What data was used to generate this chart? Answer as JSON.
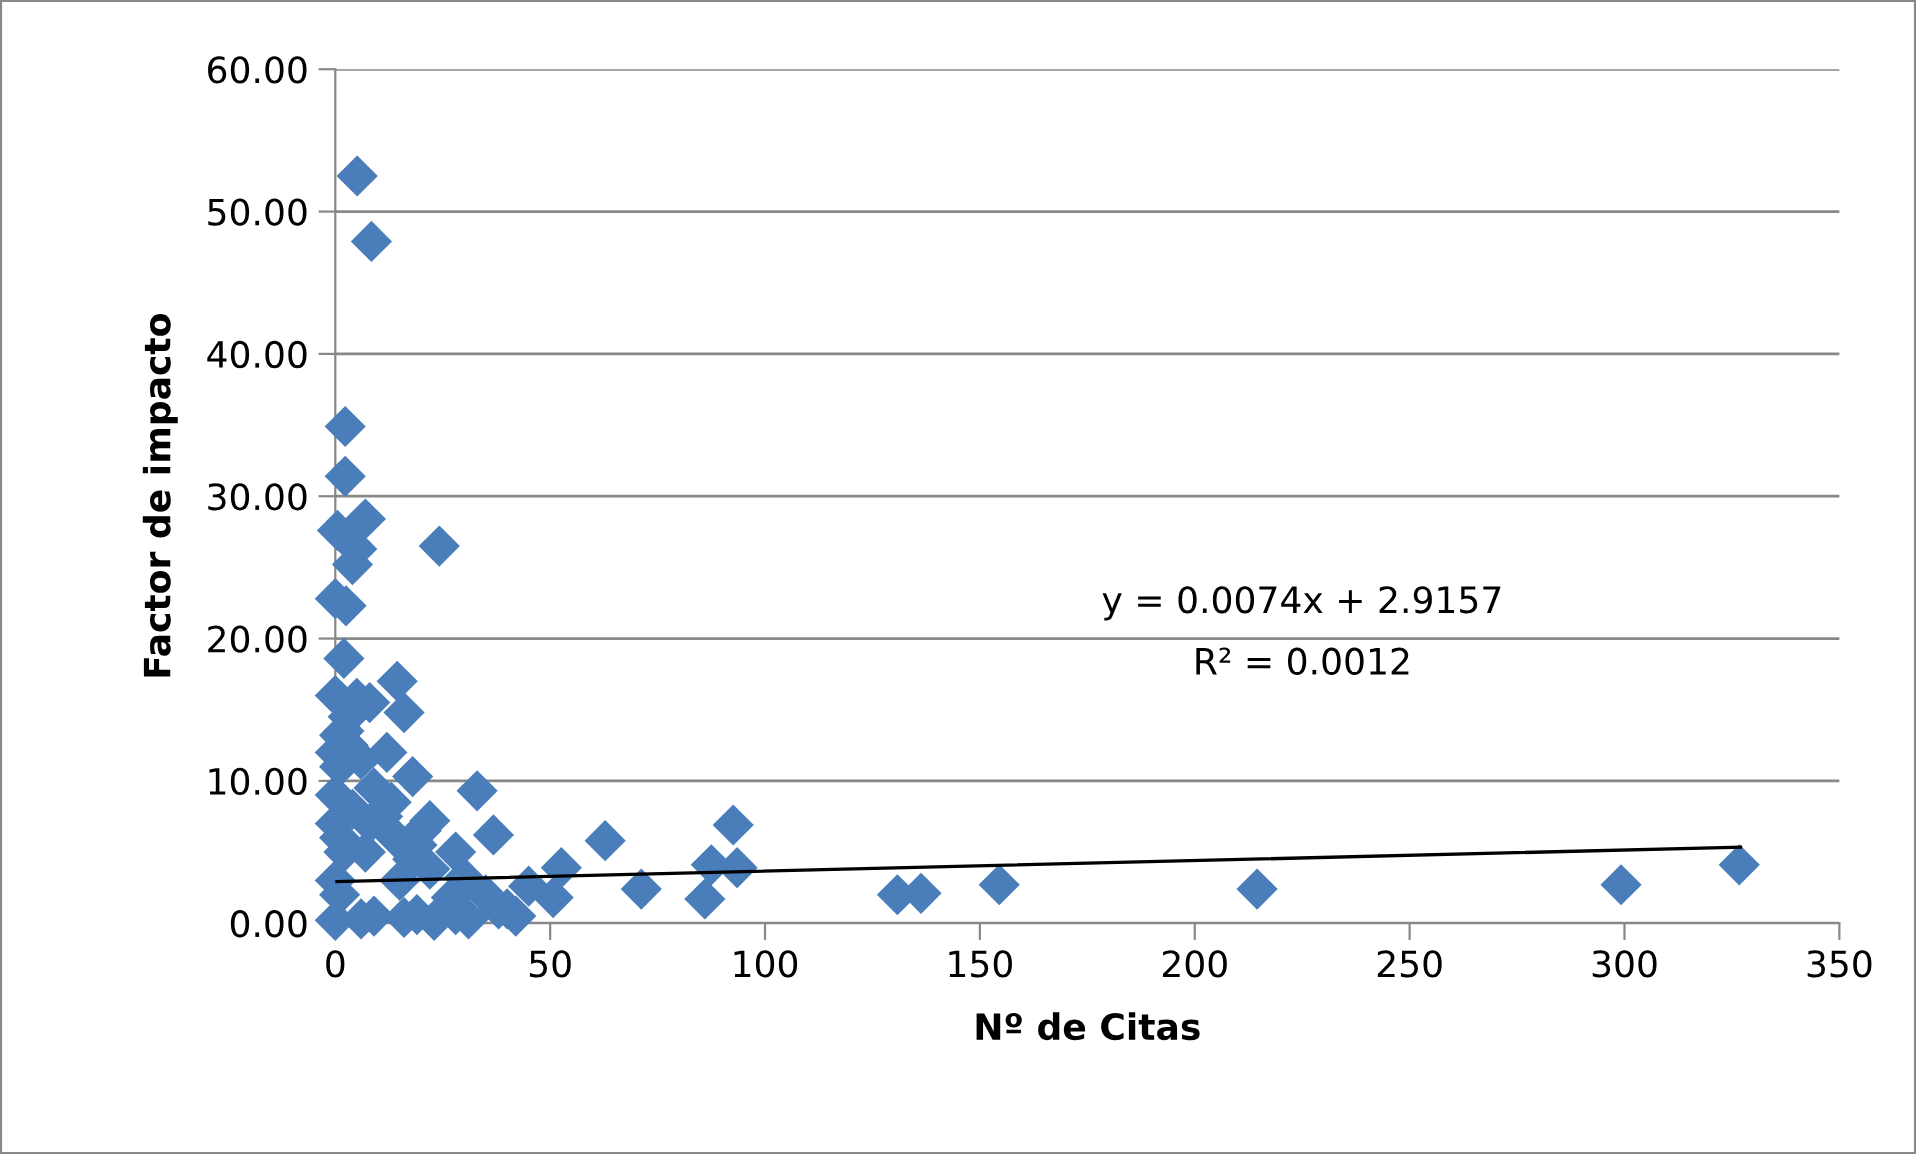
{
  "chart_data": {
    "type": "scatter",
    "xlabel": "Nº de Citas",
    "ylabel": "Factor de impacto",
    "annotations": [
      "y = 0.0074x + 2.9157",
      "R² = 0.0012"
    ],
    "xlim": [
      0,
      350
    ],
    "xticks": [
      0,
      50,
      100,
      150,
      200,
      250,
      300,
      350
    ],
    "ylim": [
      0,
      60
    ],
    "yticks": [
      {
        "value": 0,
        "label": "0.00"
      },
      {
        "value": 10,
        "label": "10.00"
      },
      {
        "value": 20,
        "label": "20.00"
      },
      {
        "value": 30,
        "label": "30.00"
      },
      {
        "value": 40,
        "label": "40.00"
      },
      {
        "value": 50,
        "label": "50.00"
      },
      {
        "value": 60,
        "label": "60.00"
      }
    ],
    "grid": "y",
    "legend": false,
    "marker": "diamond",
    "series": [
      {
        "color": "#4a7ebb",
        "x": [
          5.1,
          8.4,
          2.3,
          2.3,
          0.5,
          7,
          5,
          4,
          24.2,
          0,
          2.5,
          2,
          14.4,
          8,
          16,
          12,
          5,
          3,
          1,
          0,
          1,
          4,
          6,
          9,
          11,
          13,
          18,
          20,
          22,
          33,
          36.8,
          62.8,
          92.6,
          52.6,
          50.7,
          71.2,
          86,
          87.5,
          93.5,
          130.8,
          136.3,
          154.5,
          214.5,
          299.2,
          326.7,
          0,
          1,
          2,
          0,
          1,
          15,
          19,
          28,
          30,
          35,
          38,
          42,
          45,
          0,
          2,
          7,
          14,
          18,
          22,
          27,
          31,
          0,
          3,
          8,
          28,
          40,
          0,
          6,
          9,
          16,
          19,
          23
        ],
        "values": [
          52.5,
          47.9,
          34.9,
          31.4,
          27.6,
          28.4,
          26.3,
          25.2,
          26.5,
          22.8,
          22.3,
          18.6,
          17.0,
          15.5,
          14.8,
          12.0,
          15.8,
          14.5,
          13.2,
          12.0,
          11.0,
          8.0,
          11.5,
          9.5,
          7.5,
          8.5,
          10.3,
          6.5,
          7.2,
          9.3,
          6.2,
          5.8,
          6.9,
          3.9,
          1.8,
          2.4,
          1.7,
          4.1,
          3.9,
          2.0,
          2.1,
          2.7,
          2.4,
          2.7,
          4.1,
          7.0,
          6.0,
          5.0,
          3.0,
          2.0,
          3.0,
          5.5,
          0.6,
          3.2,
          2.0,
          1.0,
          0.5,
          2.6,
          16.0,
          13.5,
          5.0,
          6.0,
          4.5,
          3.8,
          1.8,
          0.3,
          9.0,
          12.5,
          7.0,
          5.0,
          1.0,
          0.2,
          0.3,
          0.5,
          0.4,
          0.6,
          0.2
        ]
      },
      {
        "type": "line",
        "color": "#000000",
        "x": [
          0,
          327
        ],
        "values": [
          2.92,
          5.34
        ],
        "marker": "none"
      }
    ]
  }
}
